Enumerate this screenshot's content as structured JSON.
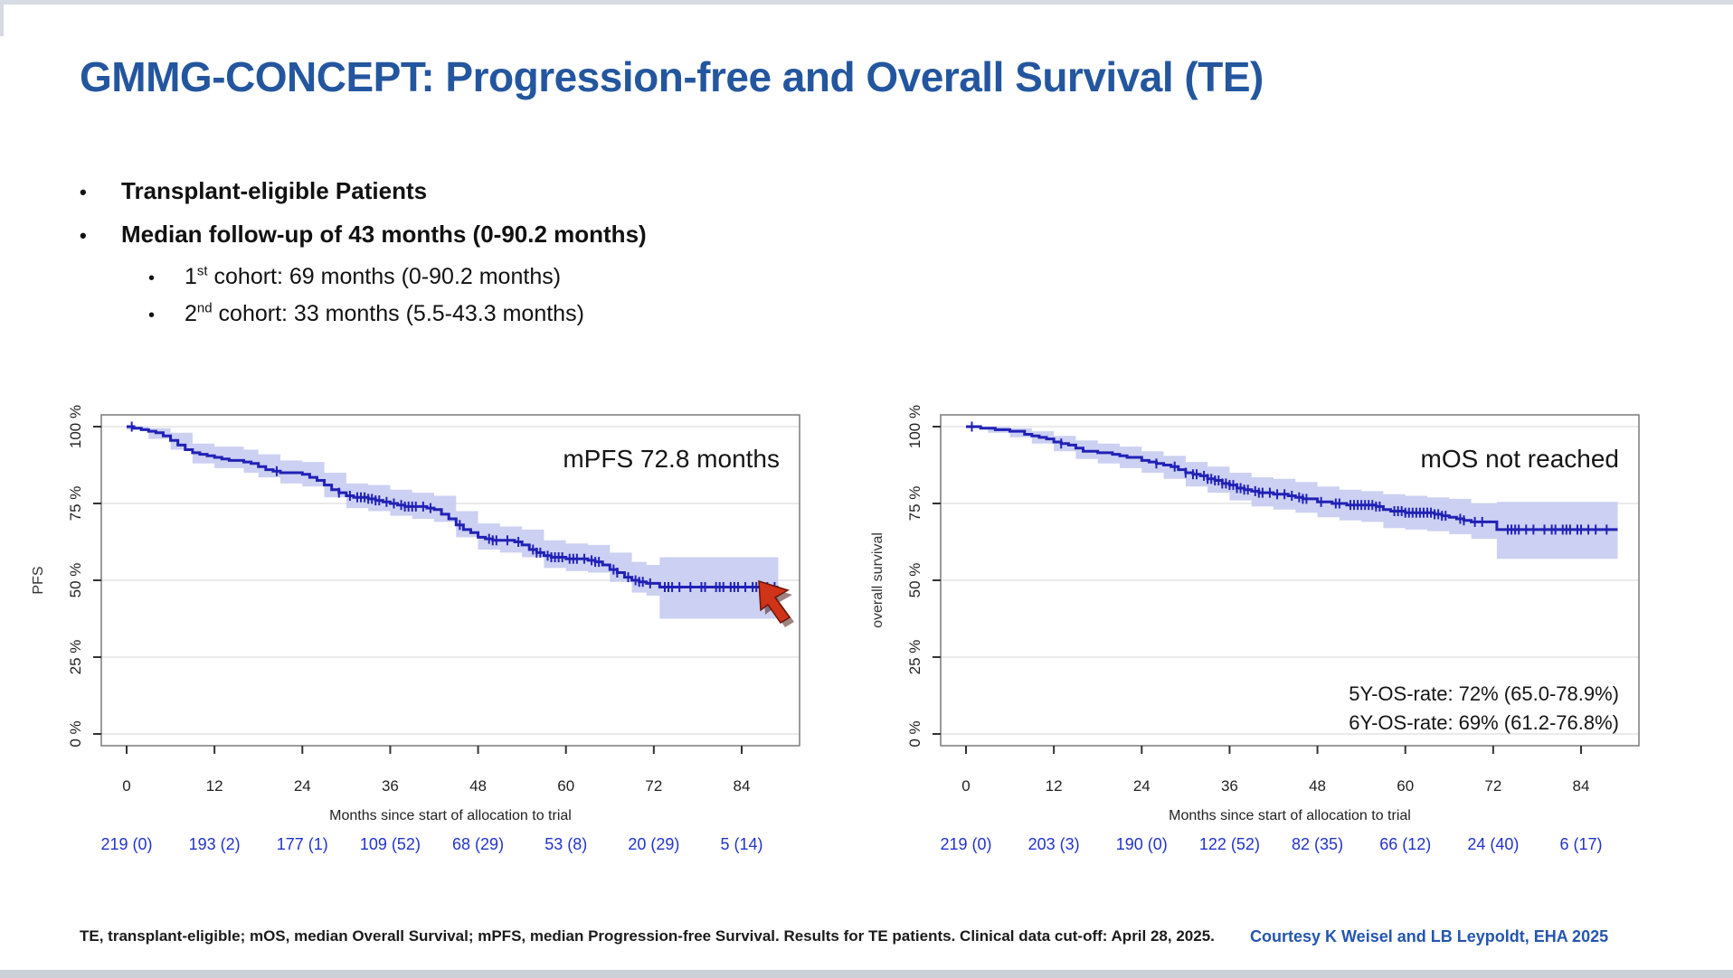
{
  "slide": {
    "title": "GMMG-CONCEPT: Progression-free and Overall Survival (TE)",
    "bullets": {
      "b1": "Transplant-eligible Patients",
      "b2": "Median follow-up of 43 months (0-90.2 months)",
      "b3": {
        "pre": "1",
        "sup": "st",
        "post": " cohort: 69 months (0-90.2 months)"
      },
      "b4": {
        "pre": "2",
        "sup": "nd",
        "post": " cohort: 33 months (5.5-43.3 months)"
      }
    },
    "footer": {
      "note": "TE, transplant-eligible; mOS, median Overall Survival; mPFS, median Progression-free Survival. Results for TE patients. Clinical data cut-off: April 28, 2025.",
      "courtesy": "Courtesy K Weisel and LB Leypoldt, EHA 2025"
    },
    "cursor_icon": "red-arrow-pointer"
  },
  "colors": {
    "title_blue": "#23569e",
    "curve_blue": "#2121b5",
    "ci_band": "#c6cbf1",
    "at_risk_blue": "#2233cc",
    "courtesy_blue": "#2456ae",
    "gridline": "#e4e4e4",
    "plot_border": "#7a7a7a",
    "cursor_red": "#cf3318"
  },
  "chart_data": [
    {
      "name": "pfs",
      "type": "line",
      "subtype": "kaplan-meier-step",
      "annotation": "mPFS 72.8 months",
      "side_annotations": [],
      "ylabel": "PFS",
      "xlabel": "Months since start of allocation to trial",
      "xticks": [
        0,
        12,
        24,
        36,
        48,
        60,
        72,
        84
      ],
      "yticks": [
        0,
        25,
        50,
        75,
        100
      ],
      "ytick_labels": [
        "0 %",
        "25 %",
        "50 %",
        "75 %",
        "100 %"
      ],
      "xlim": [
        0,
        90
      ],
      "ylim": [
        0,
        100
      ],
      "grid": true,
      "at_risk": [
        "219 (0)",
        "193 (2)",
        "177 (1)",
        "109 (52)",
        "68 (29)",
        "53 (8)",
        "20 (29)",
        "5 (14)"
      ],
      "steps": [
        [
          0,
          100
        ],
        [
          1,
          99.5
        ],
        [
          2,
          99
        ],
        [
          3,
          98.5
        ],
        [
          4,
          98
        ],
        [
          5,
          97
        ],
        [
          6,
          95.5
        ],
        [
          7,
          94
        ],
        [
          8,
          92.5
        ],
        [
          9,
          91.5
        ],
        [
          10,
          91
        ],
        [
          11,
          90.5
        ],
        [
          12,
          90
        ],
        [
          13,
          89.5
        ],
        [
          14,
          89
        ],
        [
          16,
          88.5
        ],
        [
          17,
          88
        ],
        [
          18,
          87
        ],
        [
          19,
          86
        ],
        [
          20,
          85.5
        ],
        [
          21,
          85
        ],
        [
          24,
          84.5
        ],
        [
          25,
          83.5
        ],
        [
          26,
          82.5
        ],
        [
          27,
          81
        ],
        [
          28,
          79.5
        ],
        [
          29,
          78.5
        ],
        [
          30,
          77.5
        ],
        [
          31,
          77
        ],
        [
          33,
          76.5
        ],
        [
          34,
          76
        ],
        [
          35,
          75.5
        ],
        [
          36,
          75
        ],
        [
          37,
          74.5
        ],
        [
          38,
          74
        ],
        [
          41,
          73.5
        ],
        [
          42,
          73
        ],
        [
          43,
          71.5
        ],
        [
          44,
          70
        ],
        [
          45,
          68
        ],
        [
          46,
          66.5
        ],
        [
          47,
          65.5
        ],
        [
          48,
          64
        ],
        [
          49,
          63.5
        ],
        [
          50,
          63
        ],
        [
          53,
          62.5
        ],
        [
          54,
          61.5
        ],
        [
          55,
          60
        ],
        [
          56,
          59
        ],
        [
          57,
          58
        ],
        [
          58,
          57.5
        ],
        [
          60,
          57
        ],
        [
          63,
          56.5
        ],
        [
          64,
          56
        ],
        [
          65,
          55
        ],
        [
          66,
          53.5
        ],
        [
          67,
          52.5
        ],
        [
          68,
          51
        ],
        [
          69,
          50
        ],
        [
          70,
          49.5
        ],
        [
          71,
          49
        ],
        [
          72.8,
          47.8
        ],
        [
          89,
          47.8
        ]
      ],
      "band": [
        [
          0,
          99,
          100
        ],
        [
          3,
          96,
          99.5
        ],
        [
          6,
          92.5,
          98
        ],
        [
          9,
          88,
          94.5
        ],
        [
          12,
          86.5,
          93.5
        ],
        [
          16,
          85,
          92.5
        ],
        [
          18,
          83.5,
          91
        ],
        [
          21,
          81.5,
          89
        ],
        [
          24,
          80.5,
          88.5
        ],
        [
          27,
          77,
          85
        ],
        [
          30,
          73.5,
          81.5
        ],
        [
          33,
          72.5,
          81
        ],
        [
          36,
          71,
          79.5
        ],
        [
          39,
          70,
          78.5
        ],
        [
          42,
          69,
          77.5
        ],
        [
          45,
          64,
          72.5
        ],
        [
          48,
          60,
          68.5
        ],
        [
          51,
          59,
          67.5
        ],
        [
          54,
          57.5,
          66.5
        ],
        [
          57,
          54,
          63
        ],
        [
          60,
          53,
          62
        ],
        [
          63,
          52.5,
          61.5
        ],
        [
          66,
          49.5,
          59
        ],
        [
          69,
          46,
          56
        ],
        [
          71,
          45,
          55
        ],
        [
          72.8,
          37.5,
          57.5
        ],
        [
          89,
          37.5,
          57.5
        ]
      ],
      "censor_times": [
        0.7,
        20.5,
        29,
        30.5,
        31.5,
        32,
        32.5,
        33,
        33.5,
        34,
        34.5,
        35.5,
        36.5,
        37.5,
        38,
        38.5,
        39,
        39.5,
        40.5,
        41.5,
        45.5,
        49.5,
        50,
        50.5,
        52,
        53.5,
        55.5,
        56,
        56.5,
        57.5,
        58,
        58.5,
        59,
        59.5,
        60.5,
        61,
        61.5,
        62.5,
        63.5,
        64,
        64.5,
        66.5,
        67,
        68.5,
        69.5,
        70,
        70.5,
        71.5,
        73.5,
        74,
        74.5,
        75.5,
        77,
        78.5,
        79,
        80.5,
        81,
        81.5,
        82.5,
        83,
        83.5,
        84.5,
        85.5,
        86,
        86.5,
        87,
        87.5,
        88.5
      ]
    },
    {
      "name": "os",
      "type": "line",
      "subtype": "kaplan-meier-step",
      "annotation": "mOS not reached",
      "side_annotations": [
        "5Y-OS-rate: 72% (65.0-78.9%)",
        "6Y-OS-rate: 69% (61.2-76.8%)"
      ],
      "ylabel": "overall survival",
      "xlabel": "Months since start of allocation to trial",
      "xticks": [
        0,
        12,
        24,
        36,
        48,
        60,
        72,
        84
      ],
      "yticks": [
        0,
        25,
        50,
        75,
        100
      ],
      "ytick_labels": [
        "0 %",
        "25 %",
        "50 %",
        "75 %",
        "100 %"
      ],
      "xlim": [
        0,
        90
      ],
      "ylim": [
        0,
        100
      ],
      "grid": true,
      "at_risk": [
        "219 (0)",
        "203 (3)",
        "190 (0)",
        "122 (52)",
        "82 (35)",
        "66 (12)",
        "24 (40)",
        "6 (17)"
      ],
      "steps": [
        [
          0,
          100
        ],
        [
          2,
          99.5
        ],
        [
          4,
          99
        ],
        [
          6,
          98.5
        ],
        [
          8,
          97.5
        ],
        [
          9,
          97
        ],
        [
          10,
          96.5
        ],
        [
          11,
          96
        ],
        [
          12,
          95
        ],
        [
          13,
          94.5
        ],
        [
          14,
          94
        ],
        [
          15,
          93
        ],
        [
          16,
          92
        ],
        [
          18,
          91.5
        ],
        [
          20,
          91
        ],
        [
          21,
          90.5
        ],
        [
          22,
          90
        ],
        [
          24,
          89
        ],
        [
          25,
          88.5
        ],
        [
          26,
          88
        ],
        [
          27,
          87.5
        ],
        [
          28,
          87
        ],
        [
          29,
          86
        ],
        [
          30,
          85
        ],
        [
          31,
          84.5
        ],
        [
          32,
          84
        ],
        [
          33,
          83
        ],
        [
          34,
          82.5
        ],
        [
          35,
          81.5
        ],
        [
          36,
          81
        ],
        [
          37,
          80
        ],
        [
          38,
          79.5
        ],
        [
          39,
          79
        ],
        [
          40,
          78.5
        ],
        [
          42,
          78
        ],
        [
          44,
          77.5
        ],
        [
          45,
          77
        ],
        [
          46,
          76.5
        ],
        [
          48,
          75.5
        ],
        [
          50,
          75
        ],
        [
          52,
          74.5
        ],
        [
          56,
          74
        ],
        [
          57,
          73
        ],
        [
          58,
          72.5
        ],
        [
          60,
          72
        ],
        [
          64,
          71.5
        ],
        [
          65,
          71
        ],
        [
          66,
          70.5
        ],
        [
          67,
          70
        ],
        [
          68,
          69.5
        ],
        [
          69,
          69
        ],
        [
          72.5,
          66.5
        ],
        [
          89,
          66.5
        ]
      ],
      "band": [
        [
          0,
          99.5,
          100
        ],
        [
          3,
          98,
          100
        ],
        [
          6,
          96.5,
          99.5
        ],
        [
          9,
          94.5,
          98.5
        ],
        [
          12,
          92,
          97
        ],
        [
          15,
          89.5,
          95.5
        ],
        [
          18,
          88,
          94.5
        ],
        [
          21,
          86.5,
          93.5
        ],
        [
          24,
          85,
          92
        ],
        [
          27,
          83,
          90.5
        ],
        [
          30,
          80.5,
          88.5
        ],
        [
          33,
          78.5,
          87
        ],
        [
          36,
          76,
          85
        ],
        [
          39,
          74,
          83.5
        ],
        [
          42,
          73,
          83
        ],
        [
          45,
          72,
          82
        ],
        [
          48,
          70.5,
          80.5
        ],
        [
          51,
          69.5,
          79.5
        ],
        [
          54,
          69,
          79
        ],
        [
          57,
          67,
          78
        ],
        [
          60,
          66.5,
          77.5
        ],
        [
          63,
          66,
          77
        ],
        [
          66,
          65,
          76.5
        ],
        [
          69,
          63.5,
          75
        ],
        [
          72.5,
          57,
          75.5
        ],
        [
          89,
          57,
          75.5
        ]
      ],
      "censor_times": [
        0.8,
        13,
        26,
        28.5,
        30,
        31,
        31.5,
        32.5,
        33,
        33.5,
        34,
        34.5,
        35,
        35.5,
        36,
        36.5,
        37,
        37.5,
        38,
        38.5,
        39.5,
        40,
        40.5,
        41.5,
        42.5,
        43.5,
        44.5,
        45.5,
        46,
        46.5,
        48.5,
        50.5,
        51,
        52.5,
        53,
        53.5,
        54,
        54.5,
        55,
        55.5,
        56,
        56.5,
        58.5,
        59,
        59.5,
        60,
        60.5,
        61,
        61.5,
        62,
        62.5,
        63,
        63.5,
        64,
        64.5,
        65,
        65.5,
        67.5,
        68,
        69.5,
        70.5,
        74,
        74.5,
        75,
        75.5,
        76.5,
        77.5,
        79,
        80,
        80.5,
        81.5,
        82,
        82.5,
        83.5,
        84,
        85,
        86,
        87.5
      ]
    }
  ]
}
